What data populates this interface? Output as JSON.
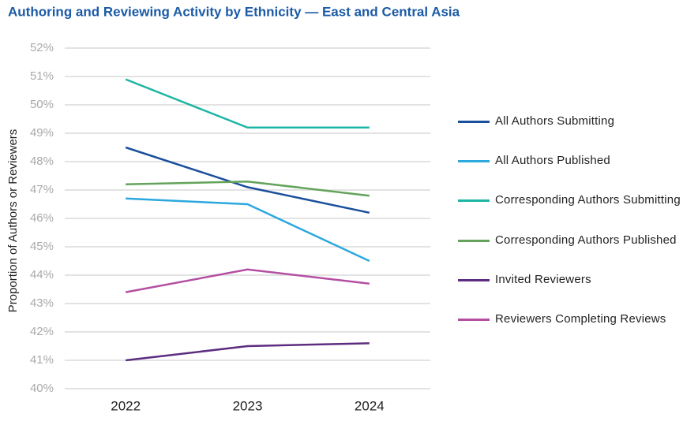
{
  "chart_data": {
    "type": "line",
    "title": "Authoring and Reviewing Activity by Ethnicity — East and Central Asia",
    "y_label": "Proportion of Authors or Reviewers",
    "categories": [
      "2022",
      "2023",
      "2024"
    ],
    "series": [
      {
        "name": "All Authors Submitting",
        "color": "#1b4f9c",
        "values": [
          48.5,
          47.1,
          46.2
        ]
      },
      {
        "name": "All Authors Published",
        "color": "#2ca8de",
        "values": [
          46.7,
          46.5,
          44.5
        ]
      },
      {
        "name": "Corresponding Authors Submitting",
        "color": "#1db5a4",
        "values": [
          50.9,
          49.2,
          49.2
        ]
      },
      {
        "name": "Corresponding Authors Published",
        "color": "#63a35b",
        "values": [
          47.2,
          47.3,
          46.8
        ]
      },
      {
        "name": "Invited Reviewers",
        "color": "#5c2d80",
        "values": [
          41.0,
          41.5,
          41.6
        ]
      },
      {
        "name": "Reviewers Completing Reviews",
        "color": "#b44fa2",
        "values": [
          43.4,
          44.2,
          43.7
        ]
      }
    ],
    "ylim": [
      40,
      52
    ],
    "yticks": [
      {
        "value": 40,
        "label": "40%"
      },
      {
        "value": 41,
        "label": "41%"
      },
      {
        "value": 42,
        "label": "42%"
      },
      {
        "value": 43,
        "label": "43%"
      },
      {
        "value": 44,
        "label": "44%"
      },
      {
        "value": 45,
        "label": "45%"
      },
      {
        "value": 46,
        "label": "46%"
      },
      {
        "value": 47,
        "label": "47%"
      },
      {
        "value": 48,
        "label": "48%"
      },
      {
        "value": 49,
        "label": "49%"
      },
      {
        "value": 50,
        "label": "50%"
      },
      {
        "value": 51,
        "label": "51%"
      },
      {
        "value": 52,
        "label": "52%"
      }
    ],
    "grid": true,
    "legend": "right"
  }
}
